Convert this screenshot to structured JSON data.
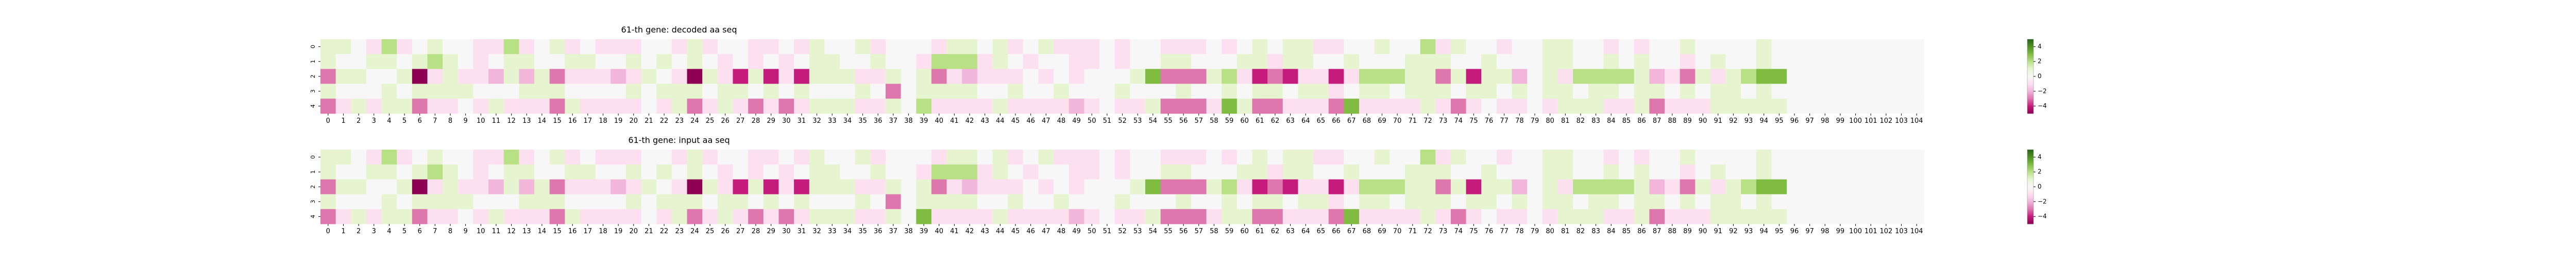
{
  "chart_data": [
    {
      "type": "heatmap",
      "title": "61-th gene: decoded aa seq",
      "x_ticks": [
        "0",
        "1",
        "2",
        "3",
        "4",
        "5",
        "6",
        "7",
        "8",
        "9",
        "10",
        "11",
        "12",
        "13",
        "14",
        "15",
        "16",
        "17",
        "18",
        "19",
        "20",
        "21",
        "22",
        "23",
        "24",
        "25",
        "26",
        "27",
        "28",
        "29",
        "30",
        "31",
        "32",
        "33",
        "34",
        "35",
        "36",
        "37",
        "38",
        "39",
        "40",
        "41",
        "42",
        "43",
        "44",
        "45",
        "46",
        "47",
        "48",
        "49",
        "50",
        "51",
        "52",
        "53",
        "54",
        "55",
        "56",
        "57",
        "58",
        "59",
        "60",
        "61",
        "62",
        "63",
        "64",
        "65",
        "66",
        "67",
        "68",
        "69",
        "70",
        "71",
        "72",
        "73",
        "74",
        "75",
        "76",
        "77",
        "78",
        "79",
        "80",
        "81",
        "82",
        "83",
        "84",
        "85",
        "86",
        "87",
        "88",
        "89",
        "90",
        "91",
        "92",
        "93",
        "94",
        "95",
        "96",
        "97",
        "98",
        "99",
        "100",
        "101",
        "102",
        "103",
        "104"
      ],
      "y_ticks": [
        "0",
        "1",
        "2",
        "3",
        "4"
      ],
      "colorbar": {
        "ticks": [
          "4",
          "2",
          "0",
          "−2",
          "−4"
        ],
        "range": [
          -5,
          5
        ],
        "cmap": "PiYG"
      },
      "values": [
        [
          1,
          1,
          0,
          -1,
          2,
          -1,
          0,
          1,
          0,
          0,
          -1,
          -1,
          2,
          -1,
          0,
          1,
          -1,
          0,
          -1,
          -1,
          -1,
          0,
          0,
          -1,
          1,
          -1,
          0,
          0,
          -1,
          -1,
          0,
          -1,
          1,
          0,
          0,
          1,
          -1,
          0,
          0,
          0,
          -1,
          1,
          1,
          0,
          1,
          -1,
          0,
          1,
          -1,
          -1,
          -1,
          0,
          -1,
          0,
          0,
          -1,
          -1,
          -1,
          0,
          -1,
          0,
          1,
          0,
          1,
          1,
          -1,
          -1,
          0,
          0,
          1,
          0,
          0,
          2,
          -1,
          1,
          0,
          0,
          -1,
          0,
          0,
          1,
          1,
          0,
          0,
          -1,
          0,
          -1,
          0,
          0,
          1,
          0,
          0,
          0,
          0,
          1,
          0,
          0,
          0,
          0,
          0,
          0,
          0,
          0,
          0,
          0
        ],
        [
          1,
          0,
          0,
          1,
          1,
          0,
          1,
          2,
          1,
          0,
          -1,
          0,
          1,
          1,
          0,
          0,
          1,
          1,
          0,
          0,
          1,
          0,
          1,
          0,
          1,
          0,
          -1,
          0,
          -1,
          0,
          -1,
          0,
          1,
          1,
          0,
          0,
          1,
          0,
          0,
          -1,
          2,
          2,
          2,
          -1,
          1,
          0,
          -1,
          0,
          0,
          -1,
          -1,
          0,
          -1,
          0,
          0,
          1,
          1,
          0,
          0,
          0,
          1,
          1,
          -1,
          1,
          1,
          0,
          0,
          1,
          0,
          0,
          0,
          1,
          1,
          1,
          0,
          0,
          1,
          0,
          0,
          0,
          1,
          1,
          0,
          0,
          1,
          0,
          1,
          0,
          0,
          -1,
          0,
          1,
          0,
          0,
          1,
          0,
          0,
          0,
          0,
          0,
          0,
          0,
          0,
          0,
          0
        ],
        [
          -3,
          1,
          1,
          0,
          0,
          1,
          -5,
          -1,
          1,
          -1,
          -1,
          -2,
          1,
          -2,
          1,
          -3,
          -1,
          -1,
          -1,
          -2,
          -1,
          1,
          0,
          -1,
          -5,
          1,
          -1,
          -4,
          1,
          -4,
          -1,
          -4,
          1,
          1,
          1,
          -1,
          -1,
          1,
          0,
          1,
          -3,
          -1,
          -2,
          -1,
          -1,
          -1,
          0,
          -1,
          0,
          -1,
          0,
          0,
          0,
          1,
          3,
          -3,
          -3,
          -3,
          1,
          2,
          -1,
          -4,
          -3,
          -4,
          -1,
          -1,
          -4,
          -1,
          2,
          2,
          2,
          1,
          1,
          -3,
          1,
          -4,
          1,
          1,
          -2,
          0,
          1,
          -1,
          2,
          2,
          2,
          2,
          1,
          -2,
          -1,
          -3,
          1,
          -1,
          1,
          2,
          3,
          3,
          0,
          0,
          0,
          0,
          0,
          0,
          0,
          0,
          0
        ],
        [
          1,
          0,
          0,
          0,
          1,
          0,
          1,
          1,
          1,
          1,
          0,
          0,
          0,
          1,
          1,
          1,
          0,
          0,
          0,
          0,
          1,
          0,
          1,
          1,
          1,
          0,
          1,
          1,
          0,
          1,
          0,
          1,
          0,
          0,
          0,
          1,
          0,
          -3,
          0,
          1,
          1,
          1,
          1,
          0,
          0,
          1,
          0,
          0,
          1,
          0,
          0,
          0,
          1,
          0,
          0,
          0,
          1,
          0,
          0,
          1,
          0,
          1,
          1,
          0,
          1,
          1,
          -1,
          0,
          1,
          1,
          0,
          1,
          1,
          1,
          0,
          1,
          1,
          0,
          1,
          0,
          1,
          1,
          0,
          1,
          1,
          0,
          1,
          1,
          0,
          1,
          0,
          1,
          1,
          0,
          1,
          0,
          0,
          0,
          0,
          0,
          0,
          0,
          0,
          0,
          0
        ],
        [
          -3,
          -1,
          1,
          -1,
          1,
          1,
          -3,
          -1,
          -1,
          0,
          -1,
          1,
          -1,
          -1,
          -1,
          -3,
          1,
          -1,
          -1,
          -1,
          -1,
          0,
          -1,
          1,
          -3,
          -1,
          1,
          -1,
          -3,
          -1,
          -3,
          -1,
          1,
          1,
          1,
          -1,
          -1,
          1,
          0,
          2,
          -1,
          -1,
          -1,
          -1,
          1,
          -1,
          -1,
          -1,
          -1,
          -2,
          -1,
          0,
          -1,
          -1,
          1,
          -3,
          -3,
          -3,
          -1,
          3,
          1,
          -3,
          -3,
          -1,
          -1,
          -1,
          -3,
          3,
          -1,
          -1,
          -1,
          -1,
          1,
          -1,
          -3,
          -1,
          0,
          -1,
          -1,
          0,
          -1,
          1,
          1,
          1,
          -1,
          -1,
          1,
          -3,
          -1,
          -1,
          -1,
          1,
          1,
          1,
          1,
          1,
          0,
          0,
          0,
          0,
          0,
          0,
          0,
          0,
          0
        ]
      ]
    },
    {
      "type": "heatmap",
      "title": "61-th gene: input aa seq",
      "x_ticks": [
        "0",
        "1",
        "2",
        "3",
        "4",
        "5",
        "6",
        "7",
        "8",
        "9",
        "10",
        "11",
        "12",
        "13",
        "14",
        "15",
        "16",
        "17",
        "18",
        "19",
        "20",
        "21",
        "22",
        "23",
        "24",
        "25",
        "26",
        "27",
        "28",
        "29",
        "30",
        "31",
        "32",
        "33",
        "34",
        "35",
        "36",
        "37",
        "38",
        "39",
        "40",
        "41",
        "42",
        "43",
        "44",
        "45",
        "46",
        "47",
        "48",
        "49",
        "50",
        "51",
        "52",
        "53",
        "54",
        "55",
        "56",
        "57",
        "58",
        "59",
        "60",
        "61",
        "62",
        "63",
        "64",
        "65",
        "66",
        "67",
        "68",
        "69",
        "70",
        "71",
        "72",
        "73",
        "74",
        "75",
        "76",
        "77",
        "78",
        "79",
        "80",
        "81",
        "82",
        "83",
        "84",
        "85",
        "86",
        "87",
        "88",
        "89",
        "90",
        "91",
        "92",
        "93",
        "94",
        "95",
        "96",
        "97",
        "98",
        "99",
        "100",
        "101",
        "102",
        "103",
        "104"
      ],
      "y_ticks": [
        "0",
        "1",
        "2",
        "3",
        "4"
      ],
      "colorbar": {
        "ticks": [
          "4",
          "2",
          "0",
          "−2",
          "−4"
        ],
        "range": [
          -5,
          5
        ],
        "cmap": "PiYG"
      },
      "values": [
        [
          1,
          1,
          0,
          -1,
          2,
          -1,
          0,
          1,
          0,
          0,
          -1,
          -1,
          2,
          -1,
          0,
          1,
          -1,
          0,
          -1,
          -1,
          -1,
          0,
          0,
          -1,
          1,
          -1,
          0,
          0,
          -1,
          -1,
          0,
          -1,
          1,
          0,
          0,
          1,
          -1,
          0,
          0,
          0,
          -1,
          1,
          1,
          0,
          1,
          -1,
          0,
          1,
          -1,
          -1,
          -1,
          0,
          -1,
          0,
          0,
          -1,
          -1,
          -1,
          0,
          -1,
          0,
          1,
          0,
          1,
          1,
          -1,
          -1,
          0,
          0,
          1,
          0,
          0,
          2,
          -1,
          1,
          0,
          0,
          -1,
          0,
          0,
          1,
          1,
          0,
          0,
          -1,
          0,
          -1,
          0,
          0,
          1,
          0,
          0,
          0,
          0,
          1,
          0,
          0,
          0,
          0,
          0,
          0,
          0,
          0,
          0,
          0
        ],
        [
          1,
          0,
          0,
          1,
          1,
          0,
          1,
          2,
          1,
          0,
          -1,
          0,
          1,
          1,
          0,
          0,
          1,
          1,
          0,
          0,
          1,
          0,
          1,
          0,
          1,
          0,
          -1,
          0,
          -1,
          0,
          -1,
          0,
          1,
          1,
          0,
          0,
          1,
          0,
          0,
          -1,
          2,
          2,
          2,
          -1,
          1,
          0,
          -1,
          0,
          0,
          -1,
          -1,
          0,
          -1,
          0,
          0,
          1,
          1,
          0,
          0,
          0,
          1,
          1,
          -1,
          1,
          1,
          0,
          0,
          1,
          0,
          0,
          0,
          1,
          1,
          1,
          0,
          0,
          1,
          0,
          0,
          0,
          1,
          1,
          0,
          0,
          1,
          0,
          1,
          0,
          0,
          -1,
          0,
          1,
          0,
          0,
          1,
          0,
          0,
          0,
          0,
          0,
          0,
          0,
          0,
          0,
          0
        ],
        [
          -3,
          1,
          1,
          0,
          0,
          1,
          -5,
          -1,
          1,
          -1,
          -1,
          -2,
          1,
          -2,
          1,
          -3,
          -1,
          -1,
          -1,
          -2,
          -1,
          1,
          0,
          -1,
          -5,
          1,
          -1,
          -4,
          1,
          -4,
          -1,
          -4,
          1,
          1,
          1,
          -1,
          -1,
          1,
          0,
          1,
          -3,
          -1,
          -2,
          -1,
          -1,
          -1,
          0,
          -1,
          0,
          -1,
          0,
          0,
          0,
          1,
          3,
          -3,
          -3,
          -3,
          1,
          2,
          -1,
          -4,
          -3,
          -4,
          -1,
          -1,
          -4,
          -1,
          2,
          2,
          2,
          1,
          1,
          -3,
          1,
          -4,
          1,
          1,
          -2,
          0,
          1,
          -1,
          2,
          2,
          2,
          2,
          1,
          -2,
          -1,
          -3,
          1,
          -1,
          1,
          2,
          3,
          3,
          0,
          0,
          0,
          0,
          0,
          0,
          0,
          0,
          0
        ],
        [
          1,
          0,
          0,
          0,
          1,
          0,
          1,
          1,
          1,
          1,
          0,
          0,
          0,
          1,
          1,
          1,
          0,
          0,
          0,
          0,
          1,
          0,
          1,
          1,
          1,
          0,
          1,
          1,
          0,
          1,
          0,
          1,
          0,
          0,
          0,
          1,
          0,
          -3,
          0,
          1,
          1,
          1,
          1,
          0,
          0,
          1,
          0,
          0,
          1,
          0,
          0,
          0,
          1,
          0,
          0,
          0,
          1,
          0,
          0,
          1,
          0,
          1,
          1,
          0,
          1,
          1,
          -1,
          0,
          1,
          1,
          0,
          1,
          1,
          1,
          0,
          1,
          1,
          0,
          1,
          0,
          1,
          1,
          0,
          1,
          1,
          0,
          1,
          1,
          0,
          1,
          0,
          1,
          1,
          0,
          1,
          0,
          0,
          0,
          0,
          0,
          0,
          0,
          0,
          0,
          0
        ],
        [
          -3,
          -1,
          1,
          -1,
          1,
          1,
          -3,
          -1,
          -1,
          0,
          -1,
          1,
          -1,
          -1,
          -1,
          -3,
          1,
          -1,
          -1,
          -1,
          -1,
          0,
          -1,
          1,
          -3,
          -1,
          1,
          -1,
          -3,
          -1,
          -3,
          -1,
          1,
          1,
          1,
          -1,
          -1,
          1,
          0,
          3,
          -1,
          -1,
          -1,
          -1,
          1,
          -1,
          -1,
          -1,
          -1,
          -2,
          -1,
          0,
          -1,
          -1,
          1,
          -3,
          -3,
          -3,
          -1,
          1,
          1,
          -3,
          -3,
          -1,
          -1,
          -1,
          -3,
          3,
          -1,
          -1,
          -1,
          -1,
          1,
          -1,
          -3,
          -1,
          0,
          -1,
          -1,
          0,
          -1,
          1,
          1,
          1,
          -1,
          -1,
          1,
          -3,
          -1,
          -1,
          -1,
          1,
          1,
          1,
          1,
          1,
          0,
          0,
          0,
          0,
          0,
          0,
          0,
          0,
          0
        ]
      ]
    }
  ]
}
